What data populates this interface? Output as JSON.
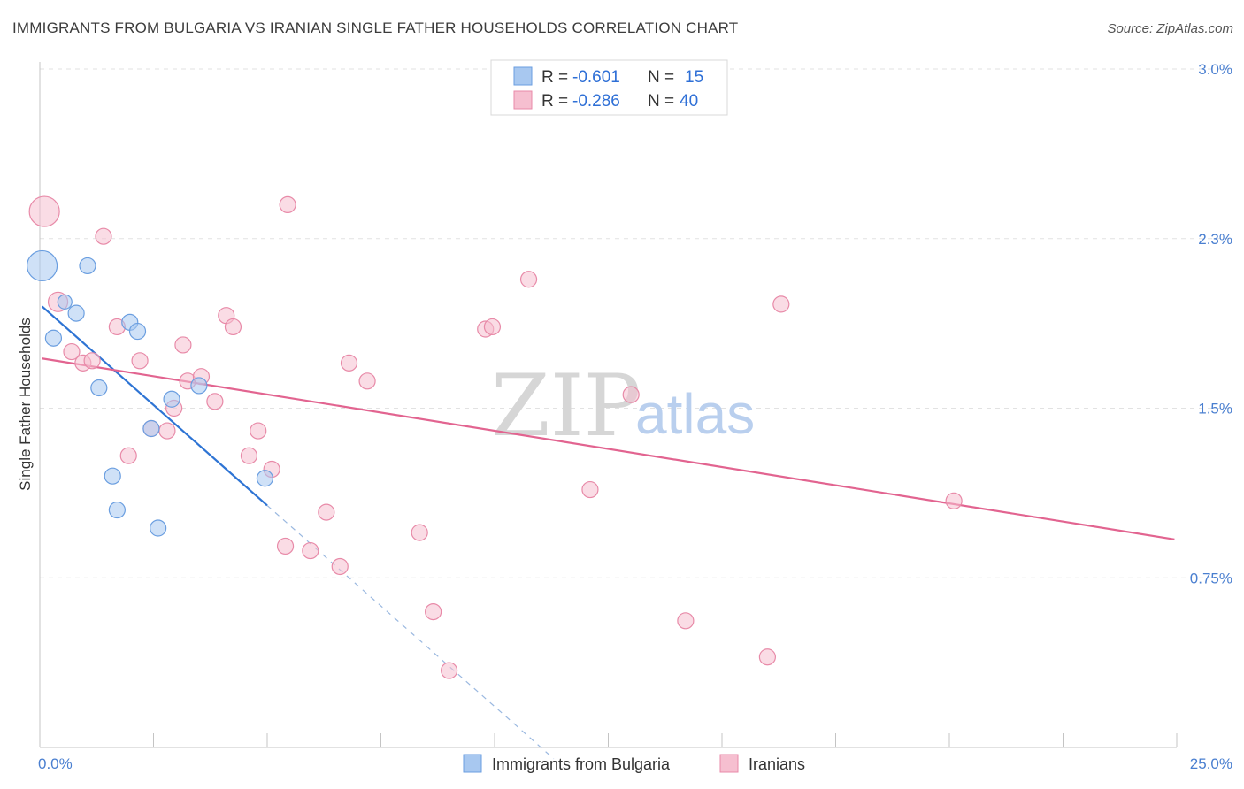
{
  "header": {
    "title": "IMMIGRANTS FROM BULGARIA VS IRANIAN SINGLE FATHER HOUSEHOLDS CORRELATION CHART",
    "source": "Source: ZipAtlas.com"
  },
  "watermark": {
    "zip": "ZIP",
    "atlas": "atlas"
  },
  "legend": {
    "r_label": "R =",
    "n_label": "N =",
    "entries": [
      {
        "r": "-0.601",
        "n": "15",
        "color": "#a8c8f0",
        "stroke": "#6a9ee0"
      },
      {
        "r": "-0.286",
        "n": "40",
        "color": "#f6bfd0",
        "stroke": "#e88aa8"
      }
    ]
  },
  "chart_data": {
    "type": "scatter",
    "title": "IMMIGRANTS FROM BULGARIA VS IRANIAN SINGLE FATHER HOUSEHOLDS CORRELATION CHART",
    "xlabel": "",
    "ylabel": "Single Father Households",
    "xlim": [
      0,
      25
    ],
    "ylim": [
      0,
      3.0
    ],
    "x_tick_labels": [
      "0.0%",
      "25.0%"
    ],
    "y_ticks": [
      {
        "value": 3.0,
        "label": "3.0%"
      },
      {
        "value": 2.25,
        "label": "2.3%"
      },
      {
        "value": 1.5,
        "label": "1.5%"
      },
      {
        "value": 0.75,
        "label": "0.75%"
      }
    ],
    "series": [
      {
        "name": "Immigrants from Bulgaria",
        "color": "#a8c8f0",
        "stroke": "#6a9ee0",
        "line_color": "#2e74d4",
        "points": [
          {
            "x": 0.05,
            "y": 2.13,
            "size": 17
          },
          {
            "x": 0.3,
            "y": 1.81,
            "size": 9
          },
          {
            "x": 0.55,
            "y": 1.97,
            "size": 8
          },
          {
            "x": 0.8,
            "y": 1.92,
            "size": 9
          },
          {
            "x": 1.05,
            "y": 2.13,
            "size": 9
          },
          {
            "x": 1.3,
            "y": 1.59,
            "size": 9
          },
          {
            "x": 1.6,
            "y": 1.2,
            "size": 9
          },
          {
            "x": 1.7,
            "y": 1.05,
            "size": 9
          },
          {
            "x": 1.98,
            "y": 1.88,
            "size": 9
          },
          {
            "x": 2.15,
            "y": 1.84,
            "size": 9
          },
          {
            "x": 2.45,
            "y": 1.41,
            "size": 9
          },
          {
            "x": 2.6,
            "y": 0.97,
            "size": 9
          },
          {
            "x": 2.9,
            "y": 1.54,
            "size": 9
          },
          {
            "x": 3.5,
            "y": 1.6,
            "size": 9
          },
          {
            "x": 4.95,
            "y": 1.19,
            "size": 9
          }
        ],
        "trend": {
          "x0": 0.05,
          "y0": 1.95,
          "x1": 5.0,
          "y1": 1.07,
          "dash_to_x": 11.3,
          "dash_to_y": -0.05
        }
      },
      {
        "name": "Iranians",
        "color": "#f6bfd0",
        "stroke": "#e88aa8",
        "line_color": "#e26490",
        "points": [
          {
            "x": 0.1,
            "y": 2.37,
            "size": 17
          },
          {
            "x": 0.4,
            "y": 1.97,
            "size": 11
          },
          {
            "x": 0.7,
            "y": 1.75,
            "size": 9
          },
          {
            "x": 0.95,
            "y": 1.7,
            "size": 9
          },
          {
            "x": 1.15,
            "y": 1.71,
            "size": 9
          },
          {
            "x": 1.4,
            "y": 2.26,
            "size": 9
          },
          {
            "x": 1.7,
            "y": 1.86,
            "size": 9
          },
          {
            "x": 1.95,
            "y": 1.29,
            "size": 9
          },
          {
            "x": 2.2,
            "y": 1.71,
            "size": 9
          },
          {
            "x": 2.45,
            "y": 1.41,
            "size": 9
          },
          {
            "x": 2.8,
            "y": 1.4,
            "size": 9
          },
          {
            "x": 2.95,
            "y": 1.5,
            "size": 9
          },
          {
            "x": 3.15,
            "y": 1.78,
            "size": 9
          },
          {
            "x": 3.25,
            "y": 1.62,
            "size": 9
          },
          {
            "x": 3.55,
            "y": 1.64,
            "size": 9
          },
          {
            "x": 3.85,
            "y": 1.53,
            "size": 9
          },
          {
            "x": 4.1,
            "y": 1.91,
            "size": 9
          },
          {
            "x": 4.25,
            "y": 1.86,
            "size": 9
          },
          {
            "x": 4.6,
            "y": 1.29,
            "size": 9
          },
          {
            "x": 4.8,
            "y": 1.4,
            "size": 9
          },
          {
            "x": 5.1,
            "y": 1.23,
            "size": 9
          },
          {
            "x": 5.45,
            "y": 2.4,
            "size": 9
          },
          {
            "x": 5.4,
            "y": 0.89,
            "size": 9
          },
          {
            "x": 5.95,
            "y": 0.87,
            "size": 9
          },
          {
            "x": 6.3,
            "y": 1.04,
            "size": 9
          },
          {
            "x": 6.6,
            "y": 0.8,
            "size": 9
          },
          {
            "x": 6.8,
            "y": 1.7,
            "size": 9
          },
          {
            "x": 7.2,
            "y": 1.62,
            "size": 9
          },
          {
            "x": 8.35,
            "y": 0.95,
            "size": 9
          },
          {
            "x": 8.65,
            "y": 0.6,
            "size": 9
          },
          {
            "x": 9.0,
            "y": 0.34,
            "size": 9
          },
          {
            "x": 9.8,
            "y": 1.85,
            "size": 9
          },
          {
            "x": 9.95,
            "y": 1.86,
            "size": 9
          },
          {
            "x": 10.75,
            "y": 2.07,
            "size": 9
          },
          {
            "x": 12.1,
            "y": 1.14,
            "size": 9
          },
          {
            "x": 13.0,
            "y": 1.56,
            "size": 9
          },
          {
            "x": 14.2,
            "y": 0.56,
            "size": 9
          },
          {
            "x": 16.0,
            "y": 0.4,
            "size": 9
          },
          {
            "x": 16.3,
            "y": 1.96,
            "size": 9
          },
          {
            "x": 20.1,
            "y": 1.09,
            "size": 9
          }
        ],
        "trend": {
          "x0": 0.05,
          "y0": 1.72,
          "x1": 24.95,
          "y1": 0.92
        }
      }
    ],
    "legend_position": "top-center",
    "bottom_legend_position": "bottom-center",
    "grid": true
  }
}
